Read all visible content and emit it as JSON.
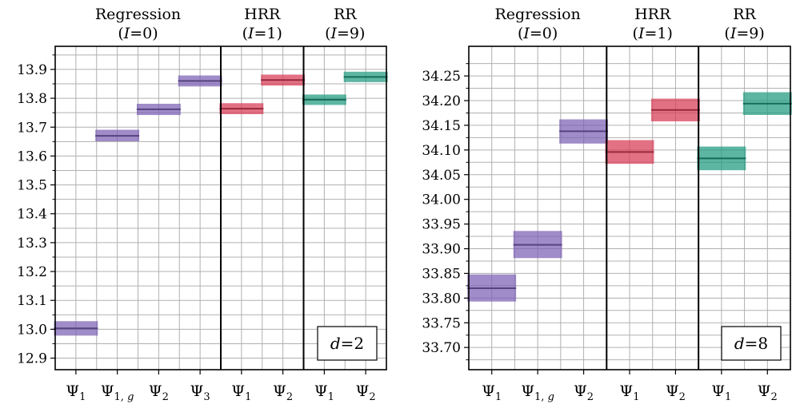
{
  "chart_data": [
    {
      "type": "range",
      "panel": "left",
      "ylim": [
        12.86,
        13.98
      ],
      "yticks": [
        "12.9",
        "13.0",
        "13.1",
        "13.2",
        "13.3",
        "13.4",
        "13.5",
        "13.6",
        "13.7",
        "13.8",
        "13.9"
      ],
      "groups": [
        {
          "name": "Regression",
          "subtitle": "(I = 0)",
          "color": "#7b5fb4",
          "slots": 4
        },
        {
          "name": "HRR",
          "subtitle": "(I = 1)",
          "color": "#d83a55",
          "slots": 2
        },
        {
          "name": "RR",
          "subtitle": "(I = 9)",
          "color": "#1f9a7e",
          "slots": 2
        }
      ],
      "bars": [
        {
          "group": 0,
          "label_base": "Ψ",
          "label_sub": "1",
          "center": 13.003,
          "low": 12.978,
          "high": 13.028
        },
        {
          "group": 0,
          "label_base": "Ψ",
          "label_sub": "1, g",
          "center": 13.67,
          "low": 13.651,
          "high": 13.691
        },
        {
          "group": 0,
          "label_base": "Ψ",
          "label_sub": "2",
          "center": 13.762,
          "low": 13.742,
          "high": 13.781
        },
        {
          "group": 0,
          "label_base": "Ψ",
          "label_sub": "3",
          "center": 13.86,
          "low": 13.841,
          "high": 13.879
        },
        {
          "group": 1,
          "label_base": "Ψ",
          "label_sub": "1",
          "center": 13.764,
          "low": 13.745,
          "high": 13.783
        },
        {
          "group": 1,
          "label_base": "Ψ",
          "label_sub": "2",
          "center": 13.863,
          "low": 13.844,
          "high": 13.882
        },
        {
          "group": 2,
          "label_base": "Ψ",
          "label_sub": "1",
          "center": 13.795,
          "low": 13.777,
          "high": 13.813
        },
        {
          "group": 2,
          "label_base": "Ψ",
          "label_sub": "2",
          "center": 13.874,
          "low": 13.856,
          "high": 13.892
        }
      ],
      "annotation": "d = 2",
      "grid": true
    },
    {
      "type": "range",
      "panel": "right",
      "ylim": [
        33.655,
        34.31
      ],
      "yticks": [
        "33.70",
        "33.75",
        "33.80",
        "33.85",
        "33.90",
        "33.95",
        "34.00",
        "34.05",
        "34.10",
        "34.15",
        "34.20",
        "34.25"
      ],
      "groups": [
        {
          "name": "Regression",
          "subtitle": "(I = 0)",
          "color": "#7b5fb4",
          "slots": 3
        },
        {
          "name": "HRR",
          "subtitle": "(I = 1)",
          "color": "#d83a55",
          "slots": 2
        },
        {
          "name": "RR",
          "subtitle": "(I = 9)",
          "color": "#1f9a7e",
          "slots": 2
        }
      ],
      "bars": [
        {
          "group": 0,
          "label_base": "Ψ",
          "label_sub": "1",
          "center": 33.82,
          "low": 33.793,
          "high": 33.848
        },
        {
          "group": 0,
          "label_base": "Ψ",
          "label_sub": "1, g",
          "center": 33.908,
          "low": 33.881,
          "high": 33.936
        },
        {
          "group": 0,
          "label_base": "Ψ",
          "label_sub": "2",
          "center": 34.138,
          "low": 34.113,
          "high": 34.162
        },
        {
          "group": 1,
          "label_base": "Ψ",
          "label_sub": "1",
          "center": 34.096,
          "low": 34.072,
          "high": 34.12
        },
        {
          "group": 1,
          "label_base": "Ψ",
          "label_sub": "2",
          "center": 34.181,
          "low": 34.158,
          "high": 34.204
        },
        {
          "group": 2,
          "label_base": "Ψ",
          "label_sub": "1",
          "center": 34.083,
          "low": 34.059,
          "high": 34.107
        },
        {
          "group": 2,
          "label_base": "Ψ",
          "label_sub": "2",
          "center": 34.194,
          "low": 34.171,
          "high": 34.217
        }
      ],
      "annotation": "d = 8",
      "grid": true
    }
  ]
}
